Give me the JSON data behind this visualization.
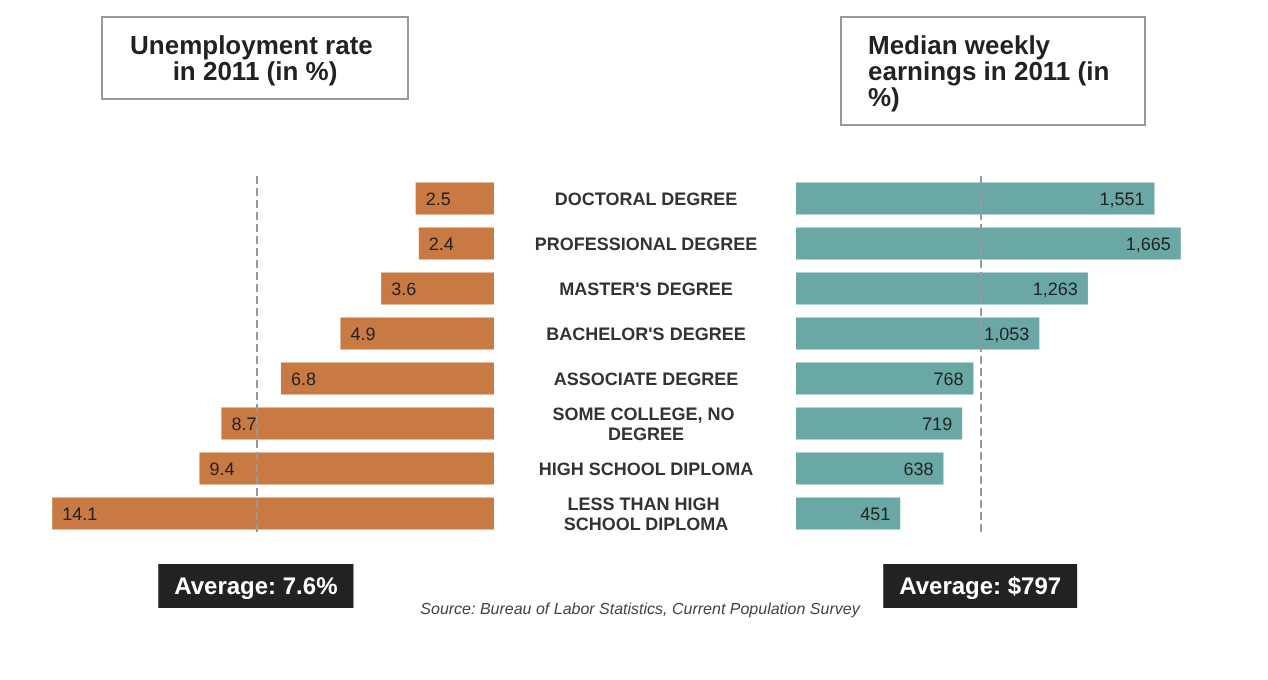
{
  "chart_data": [
    {
      "type": "bar",
      "orientation": "horizontal",
      "title": "Unemployment rate in 2011 (in %)",
      "categories": [
        "DOCTORAL DEGREE",
        "PROFESSIONAL DEGREE",
        "MASTER'S DEGREE",
        "BACHELOR'S DEGREE",
        "ASSOCIATE DEGREE",
        "SOME COLLEGE, NO DEGREE",
        "HIGH SCHOOL DIPLOMA",
        "LESS THAN HIGH SCHOOL DIPLOMA"
      ],
      "values": [
        2.5,
        2.4,
        3.6,
        4.9,
        6.8,
        8.7,
        9.4,
        14.1
      ],
      "color": "#c87a42",
      "data_labels": true,
      "tick_labels": false,
      "ref_lines": [
        {
          "axis": "x",
          "value": 7.6,
          "label": "Average: 7.6%",
          "color": "#999999",
          "line_style": "dashed"
        }
      ],
      "annotations": [
        "Source: Bureau of Labor Statistics, Current Population Survey"
      ]
    },
    {
      "type": "bar",
      "orientation": "horizontal",
      "title": "Median weekly earnings in 2011 (in %)",
      "categories": [
        "DOCTORAL DEGREE",
        "PROFESSIONAL DEGREE",
        "MASTER'S DEGREE",
        "BACHELOR'S DEGREE",
        "ASSOCIATE DEGREE",
        "SOME COLLEGE, NO DEGREE",
        "HIGH SCHOOL DIPLOMA",
        "LESS THAN HIGH SCHOOL DIPLOMA"
      ],
      "values": [
        1551,
        1665,
        1263,
        1053,
        768,
        719,
        638,
        451
      ],
      "value_labels": [
        "1,551",
        "1,665",
        "1,263",
        "1,053",
        "768",
        "719",
        "638",
        "451"
      ],
      "color": "#6aa8a5",
      "tick_labels": "y",
      "ref_lines": [
        {
          "axis": "x",
          "value": 797,
          "label": "Average: $797",
          "color": "#999999",
          "line_style": "dashed"
        }
      ]
    }
  ]
}
